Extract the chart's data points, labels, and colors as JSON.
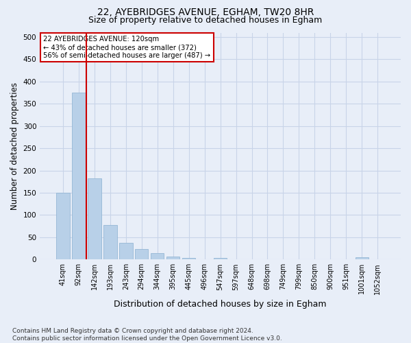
{
  "title_line1": "22, AYEBRIDGES AVENUE, EGHAM, TW20 8HR",
  "title_line2": "Size of property relative to detached houses in Egham",
  "xlabel": "Distribution of detached houses by size in Egham",
  "ylabel": "Number of detached properties",
  "footnote": "Contains HM Land Registry data © Crown copyright and database right 2024.\nContains public sector information licensed under the Open Government Licence v3.0.",
  "bar_labels": [
    "41sqm",
    "92sqm",
    "142sqm",
    "193sqm",
    "243sqm",
    "294sqm",
    "344sqm",
    "395sqm",
    "445sqm",
    "496sqm",
    "547sqm",
    "597sqm",
    "648sqm",
    "698sqm",
    "749sqm",
    "799sqm",
    "850sqm",
    "900sqm",
    "951sqm",
    "1001sqm",
    "1052sqm"
  ],
  "bar_values": [
    150,
    375,
    183,
    77,
    38,
    24,
    14,
    7,
    4,
    0,
    4,
    0,
    0,
    0,
    0,
    0,
    0,
    0,
    0,
    5,
    0
  ],
  "bar_color": "#b8d0e8",
  "bar_edgecolor": "#8ab0d0",
  "grid_color": "#c8d4e8",
  "annotation_text": "22 AYEBRIDGES AVENUE: 120sqm\n← 43% of detached houses are smaller (372)\n56% of semi-detached houses are larger (487) →",
  "annotation_box_color": "#ffffff",
  "annotation_box_edgecolor": "#cc0000",
  "vline_x": 1.5,
  "vline_color": "#cc0000",
  "ylim": [
    0,
    510
  ],
  "yticks": [
    0,
    50,
    100,
    150,
    200,
    250,
    300,
    350,
    400,
    450,
    500
  ],
  "background_color": "#e8eef8",
  "axes_background_color": "#e8eef8",
  "title_fontsize": 10,
  "subtitle_fontsize": 9,
  "tick_fontsize": 7,
  "ylabel_fontsize": 8.5,
  "xlabel_fontsize": 9,
  "footnote_fontsize": 6.5
}
